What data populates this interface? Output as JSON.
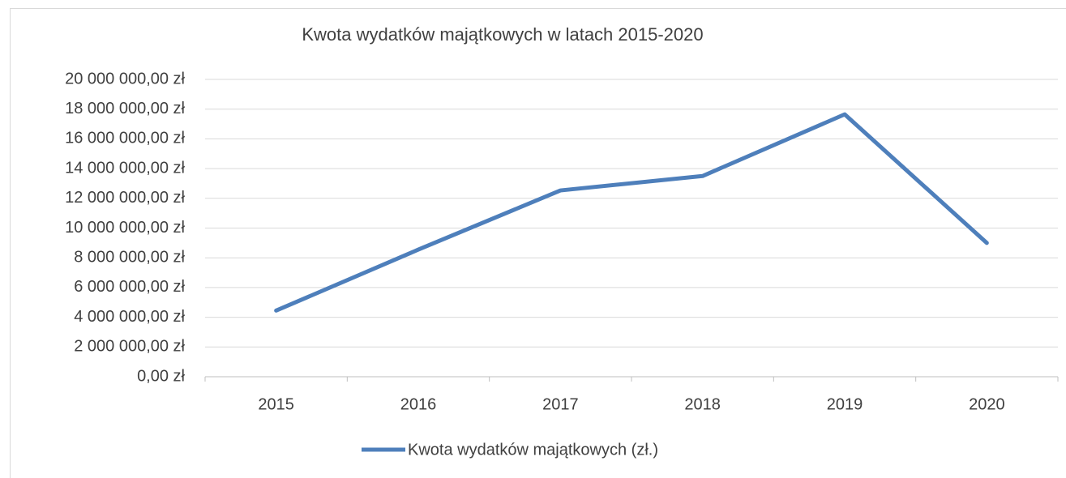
{
  "chart_data": {
    "type": "line",
    "title": "Kwota wydatków majątkowych w latach 2015-2020",
    "categories": [
      "2015",
      "2016",
      "2017",
      "2018",
      "2019",
      "2020"
    ],
    "series": [
      {
        "name": "Kwota wydatków majątkowych (zł.)",
        "color": "#4e7fbb",
        "values": [
          4450000,
          8550000,
          12530000,
          13500000,
          17650000,
          9000000
        ]
      }
    ],
    "ylim": [
      0,
      20000000
    ],
    "yticks": [
      {
        "value": 0,
        "label": "0,00 zł"
      },
      {
        "value": 2000000,
        "label": "2 000 000,00 zł"
      },
      {
        "value": 4000000,
        "label": "4 000 000,00 zł"
      },
      {
        "value": 6000000,
        "label": "6 000 000,00 zł"
      },
      {
        "value": 8000000,
        "label": "8 000 000,00 zł"
      },
      {
        "value": 10000000,
        "label": "10 000 000,00 zł"
      },
      {
        "value": 12000000,
        "label": "12 000 000,00 zł"
      },
      {
        "value": 14000000,
        "label": "14 000 000,00 zł"
      },
      {
        "value": 16000000,
        "label": "16 000 000,00 zł"
      },
      {
        "value": 18000000,
        "label": "18 000 000,00 zł"
      },
      {
        "value": 20000000,
        "label": "20 000 000,00 zł"
      }
    ],
    "grid": true,
    "legend": "bottom"
  }
}
